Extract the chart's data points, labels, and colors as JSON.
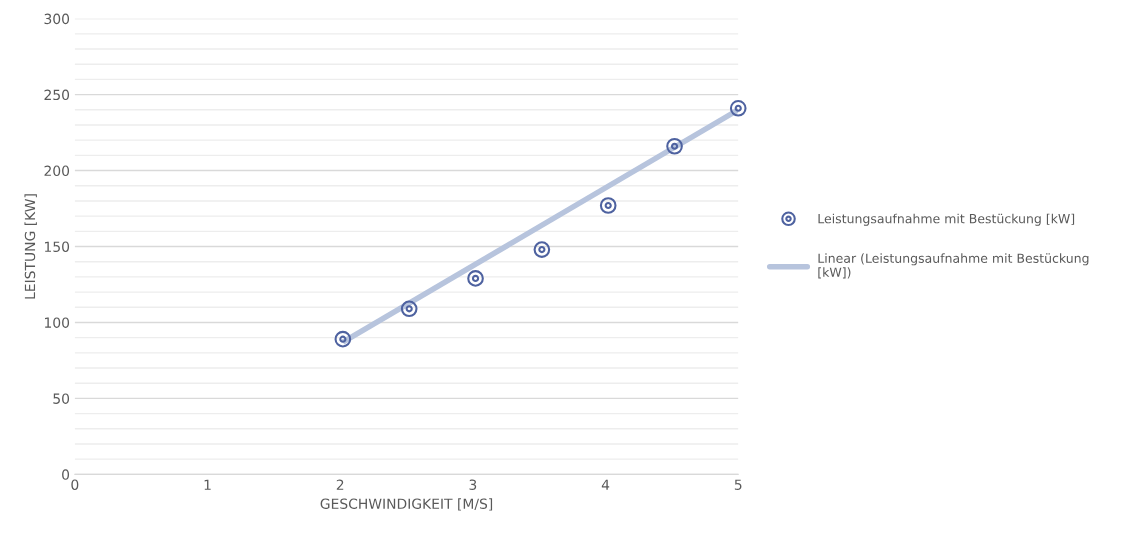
{
  "chart_data": {
    "type": "scatter",
    "xlabel": "GESCHWINDIGKEIT [M/S]",
    "ylabel": "LEISTUNG [KW]",
    "x": [
      2.02,
      2.52,
      3.02,
      3.52,
      4.02,
      4.52,
      5.0
    ],
    "series": [
      {
        "name": "Leistungsaufnahme mit Bestückung [kW]",
        "color": "#4e62a0",
        "values": [
          89,
          109,
          129,
          148,
          177,
          216,
          241
        ],
        "marker": "circle"
      },
      {
        "name": "Linear (Leistungsaufnahme mit Bestückung [kW])",
        "type": "line",
        "color": "#b7c4dd",
        "x": [
          2.02,
          5.0
        ],
        "values": [
          87,
          240
        ]
      }
    ],
    "xlim": [
      0,
      5
    ],
    "xticks": [
      0,
      1,
      2,
      3,
      4,
      5
    ],
    "ylim": [
      0,
      300
    ],
    "yticks": [
      0,
      {
        "value": 10,
        "label": null
      },
      {
        "value": 20,
        "label": null
      },
      {
        "value": 30,
        "label": null
      },
      {
        "value": 40,
        "label": null
      },
      50,
      {
        "value": 60,
        "label": null
      },
      {
        "value": 70,
        "label": null
      },
      {
        "value": 80,
        "label": null
      },
      {
        "value": 90,
        "label": null
      },
      100,
      {
        "value": 110,
        "label": null
      },
      {
        "value": 120,
        "label": null
      },
      {
        "value": 130,
        "label": null
      },
      {
        "value": 140,
        "label": null
      },
      150,
      {
        "value": 160,
        "label": null
      },
      {
        "value": 170,
        "label": null
      },
      {
        "value": 180,
        "label": null
      },
      {
        "value": 190,
        "label": null
      },
      200,
      {
        "value": 210,
        "label": null
      },
      {
        "value": 220,
        "label": null
      },
      {
        "value": 230,
        "label": null
      },
      {
        "value": 240,
        "label": null
      },
      250,
      {
        "value": 260,
        "label": null
      },
      {
        "value": 270,
        "label": null
      },
      {
        "value": 280,
        "label": null
      },
      {
        "value": 290,
        "label": null
      },
      300
    ],
    "grid": "y",
    "legend": "right"
  }
}
